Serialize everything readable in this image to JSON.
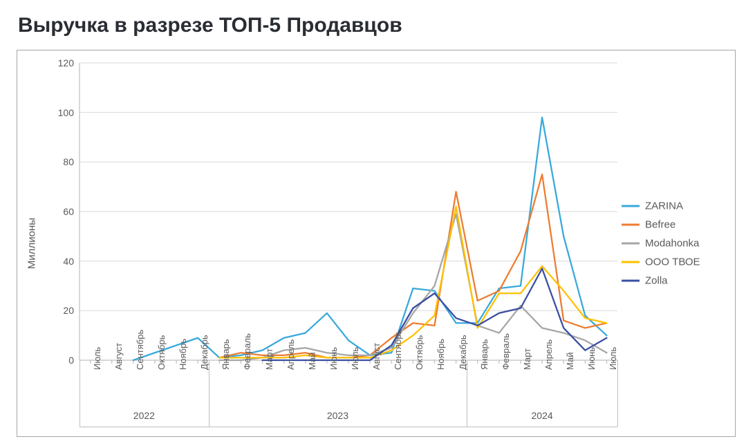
{
  "title": "Выручка в разрезе ТОП-5 Продавцов",
  "chart": {
    "type": "line",
    "ylabel": "Миллионы",
    "ylim": [
      0,
      120
    ],
    "ytick_step": 20,
    "yticks": [
      0,
      20,
      40,
      60,
      80,
      100,
      120
    ],
    "background_color": "#ffffff",
    "grid_color": "#d9d9d9",
    "axis_color": "#bfbfbf",
    "tick_label_color": "#595959",
    "tick_fontsize": 13,
    "ylabel_fontsize": 15,
    "title_fontsize": 30,
    "title_color": "#2a2d33",
    "line_width": 2.3,
    "frame_border_color": "#a6a6a6",
    "x_months": [
      "Июль",
      "Август",
      "Сентябрь",
      "Октябрь",
      "Ноябрь",
      "Декабрь",
      "Январь",
      "Февраль",
      "Март",
      "Апрель",
      "Май",
      "Июнь",
      "Июль",
      "Август",
      "Сентябрь",
      "Октябрь",
      "Ноябрь",
      "Декабрь",
      "Январь",
      "Февраль",
      "Март",
      "Апрель",
      "Май",
      "Июнь",
      "Июль"
    ],
    "year_groups": [
      {
        "label": "2022",
        "start": 0,
        "end": 5
      },
      {
        "label": "2023",
        "start": 6,
        "end": 17
      },
      {
        "label": "2024",
        "start": 18,
        "end": 24
      }
    ],
    "legend": {
      "position": "right",
      "fontsize": 15
    },
    "series": [
      {
        "name": "ZARINA",
        "color": "#39a9db",
        "values": [
          null,
          null,
          0,
          3,
          6,
          9,
          1,
          2,
          4,
          9,
          11,
          19,
          8,
          2,
          3,
          29,
          28,
          15,
          15,
          29,
          30,
          98,
          50,
          18,
          10
        ]
      },
      {
        "name": "Befree",
        "color": "#ed7d31",
        "values": [
          null,
          null,
          null,
          null,
          null,
          null,
          1,
          3,
          2,
          2,
          3,
          1,
          1,
          2,
          9,
          15,
          14,
          68,
          24,
          28,
          44,
          75,
          16,
          13,
          15
        ]
      },
      {
        "name": "Modahonka",
        "color": "#a6a6a6",
        "values": [
          null,
          null,
          null,
          null,
          null,
          null,
          0,
          0,
          1,
          4,
          5,
          3,
          2,
          2,
          5,
          19,
          30,
          59,
          14,
          11,
          22,
          13,
          11,
          8,
          3
        ]
      },
      {
        "name": "ООО ТВОЕ",
        "color": "#ffc000",
        "values": [
          null,
          null,
          null,
          null,
          null,
          null,
          1,
          1,
          1,
          1,
          2,
          1,
          1,
          1,
          4,
          10,
          18,
          62,
          13,
          27,
          27,
          38,
          28,
          17,
          15
        ]
      },
      {
        "name": "Zolla",
        "color": "#3a4fa3",
        "values": [
          null,
          null,
          null,
          null,
          null,
          null,
          null,
          null,
          0,
          0,
          0,
          0,
          0,
          0,
          6,
          21,
          27,
          17,
          14,
          19,
          21,
          37,
          13,
          4,
          9
        ]
      }
    ]
  }
}
